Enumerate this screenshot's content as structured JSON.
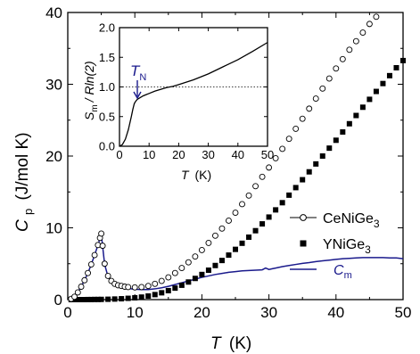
{
  "chart_data": [
    {
      "type": "scatter",
      "xlabel": "T",
      "xunit": "(K)",
      "ylabel": "C",
      "ylabel_sub": "p",
      "yunit": "(J/mol K)",
      "xlim": [
        0,
        50
      ],
      "ylim": [
        0,
        40
      ],
      "x_ticks": [
        "0",
        "10",
        "20",
        "30",
        "40",
        "50"
      ],
      "y_ticks": [
        "0",
        "10",
        "20",
        "30",
        "40"
      ],
      "legend_position": "lower-right",
      "series": [
        {
          "name": "CeNiGe",
          "name_sub": "3",
          "marker": "open-circle",
          "color": "#000000",
          "x": [
            0.5,
            1,
            1.5,
            2,
            2.5,
            3,
            3.5,
            4,
            4.5,
            4.8,
            5,
            5.2,
            5.5,
            6,
            6.5,
            7,
            7.5,
            8,
            8.5,
            9,
            10,
            11,
            12,
            13,
            14,
            15,
            16,
            17,
            18,
            19,
            20,
            21,
            22,
            23,
            24,
            25,
            26,
            27,
            28,
            29,
            30,
            31,
            32,
            33,
            34,
            35,
            36,
            37,
            38,
            39,
            40,
            41,
            42,
            43,
            44,
            45,
            46,
            47,
            48,
            49
          ],
          "y": [
            0.1,
            0.4,
            1.0,
            1.8,
            2.7,
            3.7,
            4.9,
            6.2,
            7.6,
            8.6,
            9.2,
            7.5,
            5.0,
            3.3,
            2.6,
            2.2,
            2.0,
            1.9,
            1.8,
            1.75,
            1.7,
            1.75,
            1.9,
            2.2,
            2.6,
            3.1,
            3.7,
            4.4,
            5.2,
            6.0,
            6.9,
            7.9,
            8.9,
            9.9,
            11.0,
            12.1,
            13.3,
            14.5,
            15.8,
            17.1,
            18.4,
            19.7,
            21.0,
            22.4,
            23.8,
            25.2,
            26.6,
            28.0,
            29.4,
            30.8,
            32.2,
            33.5,
            34.8,
            36.0,
            37.2,
            38.4,
            39.4,
            40.5,
            41.5,
            42.5
          ]
        },
        {
          "name": "YNiGe",
          "name_sub": "3",
          "marker": "filled-square",
          "color": "#000000",
          "x": [
            0.5,
            1,
            1.5,
            2,
            2.5,
            3,
            3.5,
            4,
            4.5,
            5,
            6,
            7,
            8,
            9,
            10,
            11,
            12,
            13,
            14,
            15,
            16,
            17,
            18,
            19,
            20,
            21,
            22,
            23,
            24,
            25,
            26,
            27,
            28,
            29,
            30,
            31,
            32,
            33,
            34,
            35,
            36,
            37,
            38,
            39,
            40,
            41,
            42,
            43,
            44,
            45,
            46,
            47,
            48,
            49,
            50
          ],
          "y": [
            0,
            0,
            0,
            0,
            0,
            0.01,
            0.01,
            0.02,
            0.02,
            0.03,
            0.05,
            0.08,
            0.12,
            0.18,
            0.25,
            0.35,
            0.5,
            0.7,
            0.95,
            1.25,
            1.6,
            2.0,
            2.45,
            2.95,
            3.5,
            4.1,
            4.75,
            5.45,
            6.2,
            7.0,
            7.85,
            8.7,
            9.6,
            10.55,
            11.5,
            12.5,
            13.5,
            14.55,
            15.6,
            16.7,
            17.8,
            18.9,
            20.0,
            21.1,
            22.2,
            23.35,
            24.5,
            25.65,
            26.8,
            27.9,
            29.0,
            30.1,
            31.2,
            32.3,
            33.3
          ]
        },
        {
          "name": "C",
          "name_sub": "m",
          "marker": "line",
          "color": "#1a1a8c",
          "x": [
            0.5,
            1,
            1.5,
            2,
            2.5,
            3,
            3.5,
            4,
            4.5,
            4.8,
            5,
            5.2,
            5.5,
            6,
            6.5,
            7,
            7.5,
            8,
            8.5,
            9,
            10,
            11,
            12,
            13,
            14,
            15,
            16,
            17,
            18,
            19,
            20,
            21,
            22,
            23,
            24,
            25,
            26,
            27,
            28,
            29,
            29.5,
            30,
            30.5,
            31,
            32,
            33,
            34,
            35,
            36,
            37,
            38,
            39,
            40,
            41,
            42,
            43,
            44,
            45,
            46,
            47,
            48,
            49,
            50
          ],
          "y": [
            0.1,
            0.4,
            1.0,
            1.8,
            2.7,
            3.7,
            4.9,
            6.2,
            7.6,
            8.5,
            9.1,
            7.4,
            4.9,
            3.2,
            2.5,
            2.1,
            1.85,
            1.7,
            1.6,
            1.55,
            1.45,
            1.4,
            1.4,
            1.5,
            1.65,
            1.85,
            2.1,
            2.35,
            2.6,
            2.85,
            3.1,
            3.3,
            3.5,
            3.65,
            3.8,
            3.9,
            4.0,
            4.05,
            4.1,
            4.15,
            4.4,
            4.2,
            4.3,
            4.4,
            4.6,
            4.75,
            4.9,
            5.05,
            5.15,
            5.3,
            5.4,
            5.5,
            5.6,
            5.7,
            5.75,
            5.8,
            5.85,
            5.85,
            5.85,
            5.85,
            5.8,
            5.8,
            5.7
          ]
        }
      ]
    },
    {
      "type": "line",
      "inset": true,
      "xlabel": "T",
      "xunit": "(K)",
      "ylabel": "S / Rln(2)",
      "ylabel_sub": "m",
      "xlim": [
        0,
        50
      ],
      "ylim": [
        0,
        2.0
      ],
      "x_ticks": [
        "0",
        "10",
        "20",
        "30",
        "40",
        "50"
      ],
      "y_ticks": [
        "0.0",
        "0.5",
        "1.0",
        "1.5",
        "2.0"
      ],
      "reference_line": 1.0,
      "annotation": "T",
      "annotation_sub": "N",
      "annotation_x": 5,
      "series": [
        {
          "color": "#000000",
          "x": [
            0,
            1,
            2,
            3,
            4,
            4.5,
            5,
            5.5,
            6,
            7,
            8,
            9,
            10,
            12,
            14,
            16,
            18,
            20,
            25,
            30,
            35,
            40,
            45,
            50
          ],
          "y": [
            0,
            0.03,
            0.12,
            0.28,
            0.5,
            0.62,
            0.72,
            0.76,
            0.79,
            0.82,
            0.85,
            0.87,
            0.89,
            0.93,
            0.96,
            0.99,
            1.01,
            1.04,
            1.12,
            1.22,
            1.34,
            1.46,
            1.6,
            1.75
          ]
        }
      ]
    }
  ]
}
